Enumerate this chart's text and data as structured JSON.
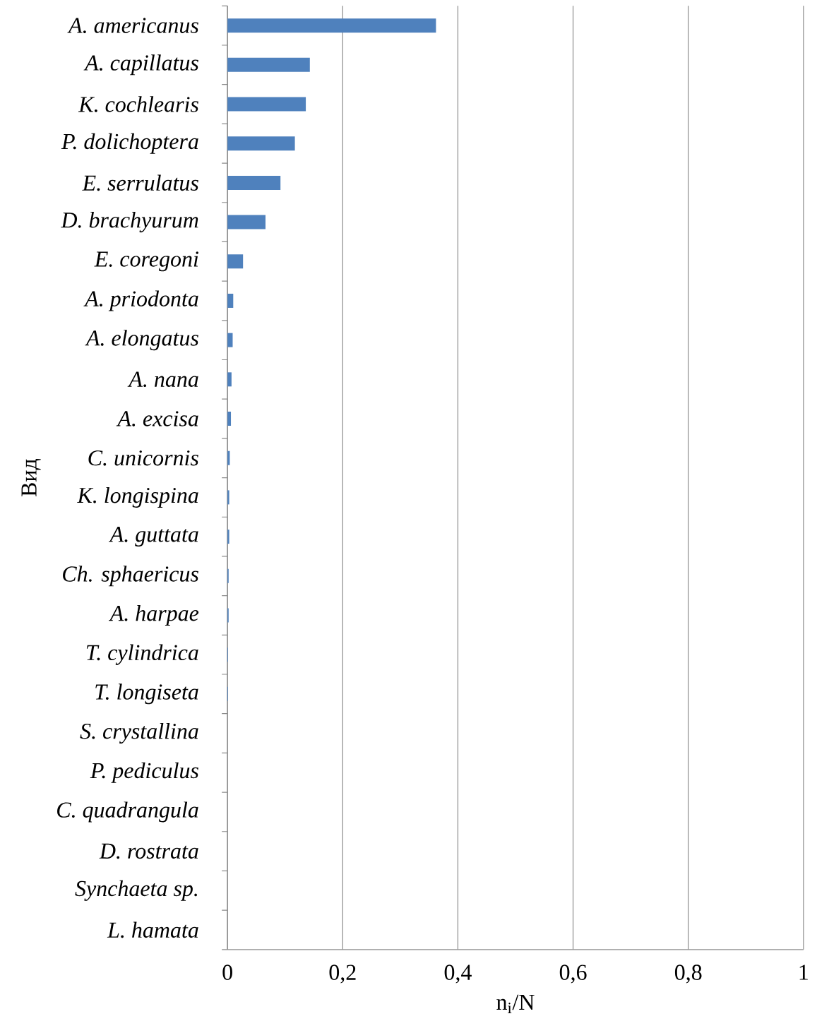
{
  "chart_data": {
    "type": "bar",
    "orientation": "horizontal",
    "xlabel": "n$_{i}$/N",
    "ylabel": "Вид",
    "categories": [
      "A. americanus",
      "A. capillatus",
      "K. cochlearis",
      "P. dolichoptera",
      "E. serrulatus",
      "D. brachyurum",
      "E. coregoni",
      "A. priodonta",
      "A. elongatus",
      "A. nana",
      "A. excisa",
      "C. unicornis",
      "K. longispina",
      "A. guttata",
      "Ch. sphaericus",
      "A. harpae",
      "T. cylindrica",
      "T. longiseta",
      "S. crystallina",
      "P. pediculus",
      "C. quadrangula",
      "D. rostrata",
      "Synchaeta sp.",
      "L. hamata"
    ],
    "values": [
      0.362,
      0.143,
      0.136,
      0.117,
      0.092,
      0.066,
      0.027,
      0.01,
      0.009,
      0.007,
      0.006,
      0.004,
      0.003,
      0.003,
      0.002,
      0.002,
      0.001,
      0.001,
      0,
      0,
      0,
      0,
      0,
      0
    ],
    "color": "#4f81bd",
    "xlim": [
      0,
      1
    ],
    "xticks": [
      0,
      {
        "value": 0.2,
        "label": "0,2"
      },
      {
        "value": 0.4,
        "label": "0,4"
      },
      {
        "value": 0.6,
        "label": "0,6"
      },
      {
        "value": 0.8,
        "label": "0,8"
      },
      1
    ],
    "grid": "x"
  }
}
